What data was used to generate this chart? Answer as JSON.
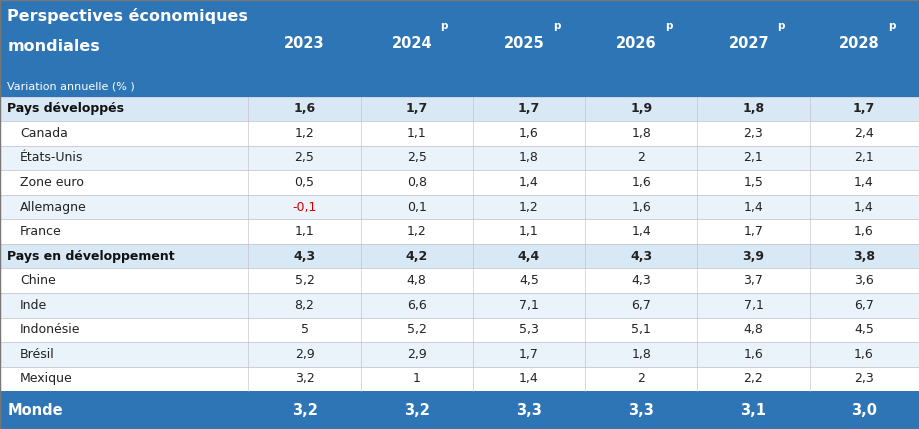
{
  "header_bg": "#2E75B6",
  "header_text_color": "#FFFFFF",
  "subheader_bg": "#D9E8F5",
  "row_bg_even": "#FFFFFF",
  "row_bg_odd": "#EAF2FA",
  "footer_bg": "#2E75B6",
  "footer_text_color": "#FFFFFF",
  "title_line1": "Perspectives économiques",
  "title_line2": "mondiales",
  "subtitle": "Variation annuelle (% )",
  "columns": [
    "2023",
    "2024p",
    "2025p",
    "2026p",
    "2027p",
    "2028p"
  ],
  "rows": [
    {
      "label": "Pays développés",
      "type": "subheader",
      "values": [
        "1,6",
        "1,7",
        "1,7",
        "1,9",
        "1,8",
        "1,7"
      ]
    },
    {
      "label": "Canada",
      "type": "data",
      "values": [
        "1,2",
        "1,1",
        "1,6",
        "1,8",
        "2,3",
        "2,4"
      ]
    },
    {
      "label": "États-Unis",
      "type": "data",
      "values": [
        "2,5",
        "2,5",
        "1,8",
        "2",
        "2,1",
        "2,1"
      ]
    },
    {
      "label": "Zone euro",
      "type": "data",
      "values": [
        "0,5",
        "0,8",
        "1,4",
        "1,6",
        "1,5",
        "1,4"
      ]
    },
    {
      "label": "Allemagne",
      "type": "data",
      "values": [
        "-0,1",
        "0,1",
        "1,2",
        "1,6",
        "1,4",
        "1,4"
      ],
      "red_col": 0
    },
    {
      "label": "France",
      "type": "data",
      "values": [
        "1,1",
        "1,2",
        "1,1",
        "1,4",
        "1,7",
        "1,6"
      ]
    },
    {
      "label": "Pays en développement",
      "type": "subheader",
      "values": [
        "4,3",
        "4,2",
        "4,4",
        "4,3",
        "3,9",
        "3,8"
      ]
    },
    {
      "label": "Chine",
      "type": "data",
      "values": [
        "5,2",
        "4,8",
        "4,5",
        "4,3",
        "3,7",
        "3,6"
      ]
    },
    {
      "label": "Inde",
      "type": "data",
      "values": [
        "8,2",
        "6,6",
        "7,1",
        "6,7",
        "7,1",
        "6,7"
      ]
    },
    {
      "label": "Indonésie",
      "type": "data",
      "values": [
        "5",
        "5,2",
        "5,3",
        "5,1",
        "4,8",
        "4,5"
      ]
    },
    {
      "label": "Brésil",
      "type": "data",
      "values": [
        "2,9",
        "2,9",
        "1,7",
        "1,8",
        "1,6",
        "1,6"
      ]
    },
    {
      "label": "Mexique",
      "type": "data",
      "values": [
        "3,2",
        "1",
        "1,4",
        "2",
        "2,2",
        "2,3"
      ]
    }
  ],
  "footer": {
    "label": "Monde",
    "values": [
      "3,2",
      "3,2",
      "3,3",
      "3,3",
      "3,1",
      "3,0"
    ]
  },
  "figsize": [
    9.2,
    4.29
  ],
  "dpi": 100
}
